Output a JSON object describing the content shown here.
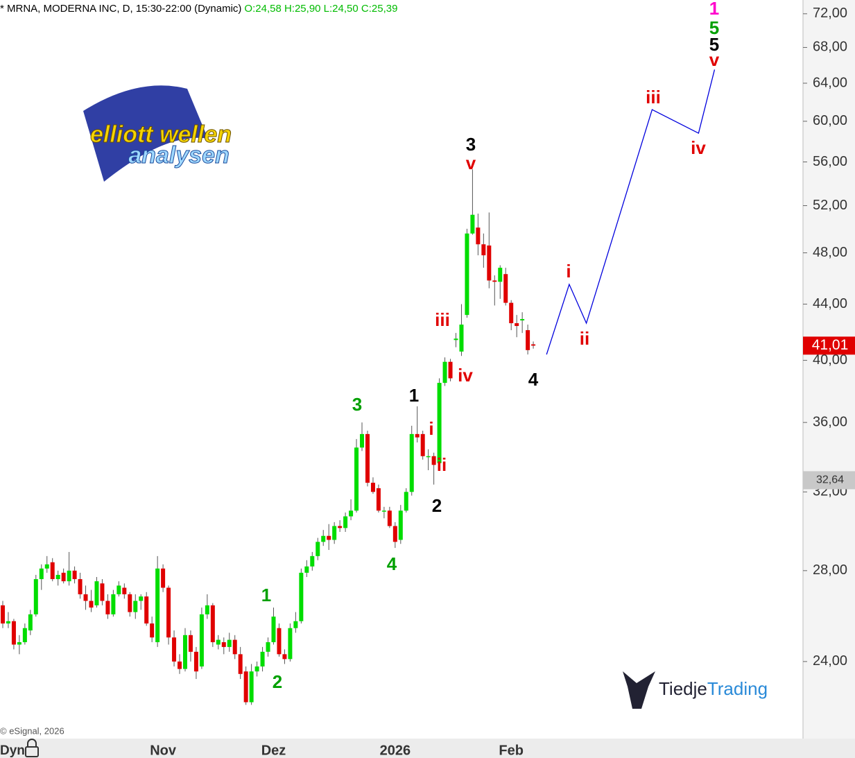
{
  "header": {
    "symbol": "* MRNA, MODERNA INC, D, 15:30-22:00 (Dynamic)",
    "ohlc": "O:24,58 H:25,90 L:24,50 C:25,39"
  },
  "chart_data": {
    "type": "candlestick",
    "log_scale": true,
    "up_color": "#00dd00",
    "down_color": "#e00000",
    "ylim": [
      21.06,
      73.7
    ],
    "xlim": [
      -0.5,
      144.8
    ],
    "yticks": [
      {
        "value": 24,
        "label": "24,00"
      },
      {
        "value": 28,
        "label": "28,00"
      },
      {
        "value": 32,
        "label": "32,00"
      },
      {
        "value": 36,
        "label": "36,00"
      },
      {
        "value": 40,
        "label": "40,00"
      },
      {
        "value": 44,
        "label": "44,00"
      },
      {
        "value": 48,
        "label": "48,00"
      },
      {
        "value": 52,
        "label": "52,00"
      },
      {
        "value": 56,
        "label": "56,00"
      },
      {
        "value": 60,
        "label": "60,00"
      },
      {
        "value": 64,
        "label": "64,00"
      },
      {
        "value": 68,
        "label": "68,00"
      },
      {
        "value": 72,
        "label": "72,00"
      }
    ],
    "categories": [
      null,
      null,
      null,
      null,
      null,
      null,
      null,
      null,
      null,
      null,
      null,
      null,
      null,
      null,
      null,
      null,
      null,
      null,
      null,
      null,
      null,
      null,
      null,
      null,
      null,
      null,
      null,
      null,
      null,
      "Nov",
      null,
      null,
      null,
      null,
      null,
      null,
      null,
      null,
      null,
      null,
      null,
      null,
      null,
      null,
      null,
      null,
      null,
      null,
      null,
      "Dez",
      null,
      null,
      null,
      null,
      null,
      null,
      null,
      null,
      null,
      null,
      null,
      null,
      null,
      null,
      null,
      null,
      null,
      null,
      null,
      null,
      null,
      "2026",
      null,
      null,
      null,
      null,
      null,
      null,
      null,
      null,
      null,
      null,
      null,
      null,
      null,
      null,
      null,
      null,
      null,
      null,
      null,
      null,
      "Feb",
      null,
      null,
      null,
      null
    ],
    "ohlc": [
      [
        26.4,
        26.6,
        25.4,
        25.6
      ],
      [
        25.6,
        26.1,
        25.4,
        25.7
      ],
      [
        25.7,
        25.8,
        24.5,
        24.7
      ],
      [
        24.7,
        25.1,
        24.3,
        24.8
      ],
      [
        24.8,
        25.6,
        24.7,
        25.4
      ],
      [
        25.3,
        26.2,
        25.1,
        26.0
      ],
      [
        26.0,
        27.8,
        25.9,
        27.6
      ],
      [
        27.6,
        28.3,
        27.1,
        28.1
      ],
      [
        28.1,
        28.7,
        27.9,
        28.3
      ],
      [
        28.4,
        28.6,
        27.5,
        27.6
      ],
      [
        27.6,
        28.0,
        27.3,
        27.8
      ],
      [
        27.9,
        28.1,
        27.4,
        27.5
      ],
      [
        27.5,
        28.9,
        27.3,
        28.0
      ],
      [
        28.0,
        28.2,
        27.4,
        27.6
      ],
      [
        27.6,
        27.9,
        26.7,
        26.9
      ],
      [
        26.9,
        27.3,
        26.2,
        26.6
      ],
      [
        26.6,
        27.1,
        26.1,
        26.3
      ],
      [
        26.4,
        27.7,
        26.3,
        27.5
      ],
      [
        27.4,
        27.6,
        26.4,
        26.6
      ],
      [
        26.6,
        26.9,
        25.8,
        26.0
      ],
      [
        26.0,
        27.1,
        25.9,
        26.9
      ],
      [
        26.9,
        27.5,
        26.8,
        27.3
      ],
      [
        27.2,
        27.4,
        26.7,
        26.9
      ],
      [
        26.9,
        27.0,
        25.9,
        26.1
      ],
      [
        26.1,
        26.9,
        25.8,
        26.6
      ],
      [
        26.6,
        26.9,
        26.2,
        26.8
      ],
      [
        26.8,
        27.0,
        25.5,
        25.6
      ],
      [
        25.6,
        25.9,
        24.8,
        25.0
      ],
      [
        24.8,
        28.7,
        24.6,
        28.1
      ],
      [
        28.1,
        28.3,
        27.0,
        27.2
      ],
      [
        27.2,
        27.3,
        24.7,
        25.0
      ],
      [
        25.0,
        25.3,
        23.8,
        24.0
      ],
      [
        24.0,
        24.3,
        23.5,
        23.7
      ],
      [
        23.7,
        25.4,
        23.6,
        25.1
      ],
      [
        25.1,
        25.3,
        24.0,
        24.4
      ],
      [
        24.4,
        24.6,
        23.3,
        23.6
      ],
      [
        23.8,
        26.3,
        23.7,
        26.0
      ],
      [
        26.0,
        26.9,
        25.8,
        26.4
      ],
      [
        26.4,
        26.5,
        24.6,
        24.8
      ],
      [
        24.7,
        25.1,
        24.5,
        24.9
      ],
      [
        24.8,
        25.0,
        24.3,
        24.6
      ],
      [
        24.6,
        25.2,
        24.4,
        24.9
      ],
      [
        24.9,
        25.1,
        24.1,
        24.3
      ],
      [
        24.3,
        24.6,
        23.3,
        23.5
      ],
      [
        23.6,
        23.8,
        22.3,
        22.4
      ],
      [
        22.4,
        23.9,
        22.3,
        23.6
      ],
      [
        23.6,
        24.0,
        23.4,
        23.8
      ],
      [
        23.8,
        24.6,
        23.6,
        24.4
      ],
      [
        24.4,
        25.0,
        24.2,
        24.8
      ],
      [
        24.8,
        26.3,
        24.7,
        25.9
      ],
      [
        25.4,
        25.6,
        24.2,
        24.3
      ],
      [
        24.3,
        24.5,
        23.9,
        24.1
      ],
      [
        24.1,
        25.6,
        24.0,
        25.4
      ],
      [
        25.4,
        26.1,
        25.2,
        25.7
      ],
      [
        25.7,
        28.1,
        25.6,
        27.9
      ],
      [
        27.9,
        28.5,
        27.7,
        28.2
      ],
      [
        28.2,
        28.9,
        28.0,
        28.7
      ],
      [
        28.7,
        29.6,
        28.5,
        29.4
      ],
      [
        29.4,
        30.0,
        29.2,
        29.7
      ],
      [
        29.7,
        30.3,
        29.0,
        29.5
      ],
      [
        29.5,
        30.4,
        29.3,
        30.2
      ],
      [
        30.2,
        30.5,
        29.9,
        30.1
      ],
      [
        30.1,
        30.9,
        29.9,
        30.7
      ],
      [
        30.7,
        31.6,
        30.5,
        31.0
      ],
      [
        31.0,
        35.0,
        30.9,
        34.5
      ],
      [
        34.5,
        36.0,
        34.3,
        35.3
      ],
      [
        35.3,
        35.5,
        32.3,
        32.5
      ],
      [
        32.5,
        32.8,
        31.9,
        32.0
      ],
      [
        32.2,
        32.4,
        30.9,
        31.0
      ],
      [
        31.0,
        31.2,
        30.6,
        31.0
      ],
      [
        31.0,
        31.2,
        30.1,
        30.2
      ],
      [
        30.2,
        30.4,
        29.1,
        29.4
      ],
      [
        29.5,
        31.3,
        29.3,
        31.0
      ],
      [
        31.0,
        32.2,
        30.9,
        32.0
      ],
      [
        32.0,
        35.8,
        31.8,
        35.3
      ],
      [
        35.3,
        37.0,
        34.8,
        35.1
      ],
      [
        35.3,
        35.5,
        33.8,
        34.0
      ],
      [
        34.0,
        34.4,
        33.2,
        34.0
      ],
      [
        34.0,
        34.2,
        32.4,
        33.5
      ],
      [
        33.6,
        38.8,
        33.4,
        38.5
      ],
      [
        38.5,
        40.2,
        38.3,
        39.9
      ],
      [
        39.9,
        40.1,
        38.6,
        38.8
      ],
      [
        41.4,
        41.9,
        40.9,
        41.5
      ],
      [
        40.6,
        44.0,
        40.3,
        42.5
      ],
      [
        43.2,
        50.0,
        43.0,
        49.6
      ],
      [
        49.6,
        55.3,
        49.5,
        51.2
      ],
      [
        50.1,
        51.3,
        47.8,
        48.7
      ],
      [
        48.7,
        49.6,
        46.8,
        47.8
      ],
      [
        48.6,
        51.4,
        45.2,
        45.8
      ],
      [
        45.8,
        46.2,
        43.9,
        45.7
      ],
      [
        45.7,
        47.0,
        44.4,
        46.8
      ],
      [
        46.3,
        46.8,
        43.9,
        44.1
      ],
      [
        44.1,
        44.3,
        42.1,
        42.6
      ],
      [
        42.6,
        43.2,
        41.6,
        42.4
      ],
      [
        42.8,
        43.4,
        41.9,
        42.9
      ],
      [
        42.1,
        42.5,
        40.4,
        40.7
      ],
      [
        41.1,
        41.3,
        40.8,
        41.01
      ]
    ],
    "projection": {
      "color": "#0000dd",
      "x": [
        98.4,
        102.5,
        105.6,
        117.5,
        125.9,
        128.8
      ],
      "values": [
        40.4,
        45.5,
        42.6,
        61.2,
        58.8,
        65.5
      ]
    },
    "price_badges": [
      {
        "value": 41.01,
        "label": "41,01",
        "color": "#e00000"
      },
      {
        "value": 32.64,
        "label": "32,64",
        "color": "#c8c8c8"
      }
    ],
    "annotations": [
      {
        "text": "1",
        "color": "#ff00cc"
      },
      {
        "text": "5",
        "color": "#00a000"
      },
      {
        "text": "5",
        "color": "#000000"
      },
      {
        "text": "v",
        "color": "#e00000"
      },
      {
        "text": "iii",
        "color": "#e00000"
      },
      {
        "text": "iv",
        "color": "#e00000"
      },
      {
        "text": "i",
        "color": "#e00000"
      },
      {
        "text": "ii",
        "color": "#e00000"
      },
      {
        "text": "3",
        "color": "#000000"
      },
      {
        "text": "v",
        "color": "#e00000"
      },
      {
        "text": "iii",
        "color": "#e00000"
      },
      {
        "text": "iv",
        "color": "#e00000"
      },
      {
        "text": "4",
        "color": "#000000"
      },
      {
        "text": "1",
        "color": "#000000"
      },
      {
        "text": "i",
        "color": "#e00000"
      },
      {
        "text": "ii",
        "color": "#e00000"
      },
      {
        "text": "2",
        "color": "#000000"
      },
      {
        "text": "3",
        "color": "#00a000"
      },
      {
        "text": "4",
        "color": "#00a000"
      },
      {
        "text": "1",
        "color": "#00a000"
      },
      {
        "text": "2",
        "color": "#00a000"
      }
    ]
  },
  "footer": {
    "copyright": "© eSignal, 2026",
    "mode": "Dyn"
  },
  "logos": {
    "elliott_line1": "elliott wellen",
    "elliott_line2": "analysen",
    "tiedje_a": "Tiedje",
    "tiedje_b": "Trading"
  }
}
